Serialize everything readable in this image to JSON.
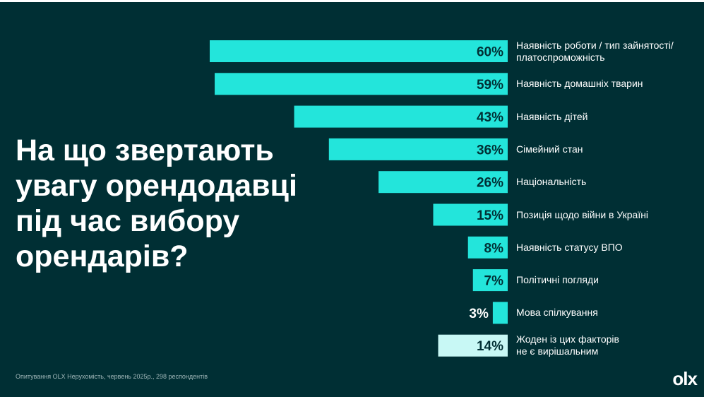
{
  "title_lines": [
    "На що звертають",
    "увагу орендодавці",
    "під час вибору",
    "орендарів?"
  ],
  "footnote": "Опитування OLX Нерухомість, червень 2025р., 298 респондентів",
  "logo": "olx",
  "colors": {
    "background": "#002f34",
    "bar": "#23e5db",
    "bar_last": "#c8f8f5",
    "value_text": "#002f34",
    "label_text": "#ffffff"
  },
  "chart_data": {
    "type": "bar",
    "orientation": "horizontal",
    "title": "На що звертають увагу орендодавці під час вибору орендарів?",
    "categories": [
      "Наявність роботи / тип зайнятості/ платоспроможність",
      "Наявність домашніх тварин",
      "Наявність дітей",
      "Сімейний стан",
      "Національність",
      "Позиція щодо війни в Україні",
      "Наявність статусу ВПО",
      "Політичні погляди",
      "Мова спілкування",
      "Жоден із цих факторів не є вирішальним"
    ],
    "label_lines": [
      [
        "Наявність роботи / тип зайнятості/",
        "платоспроможність"
      ],
      [
        "Наявність домашніх тварин"
      ],
      [
        "Наявність дітей"
      ],
      [
        "Сімейний стан"
      ],
      [
        "Національність"
      ],
      [
        "Позиція щодо війни в Україні"
      ],
      [
        "Наявність статусу ВПО"
      ],
      [
        "Політичні погляди"
      ],
      [
        "Мова спілкування"
      ],
      [
        "Жоден із цих факторів",
        "не є вирішальним"
      ]
    ],
    "values": [
      60,
      59,
      43,
      36,
      26,
      15,
      8,
      7,
      3,
      14
    ],
    "value_labels": [
      "60%",
      "59%",
      "43%",
      "36%",
      "26%",
      "15%",
      "8%",
      "7%",
      "3%",
      "14%"
    ],
    "unit": "%",
    "xlim": [
      0,
      60
    ]
  }
}
